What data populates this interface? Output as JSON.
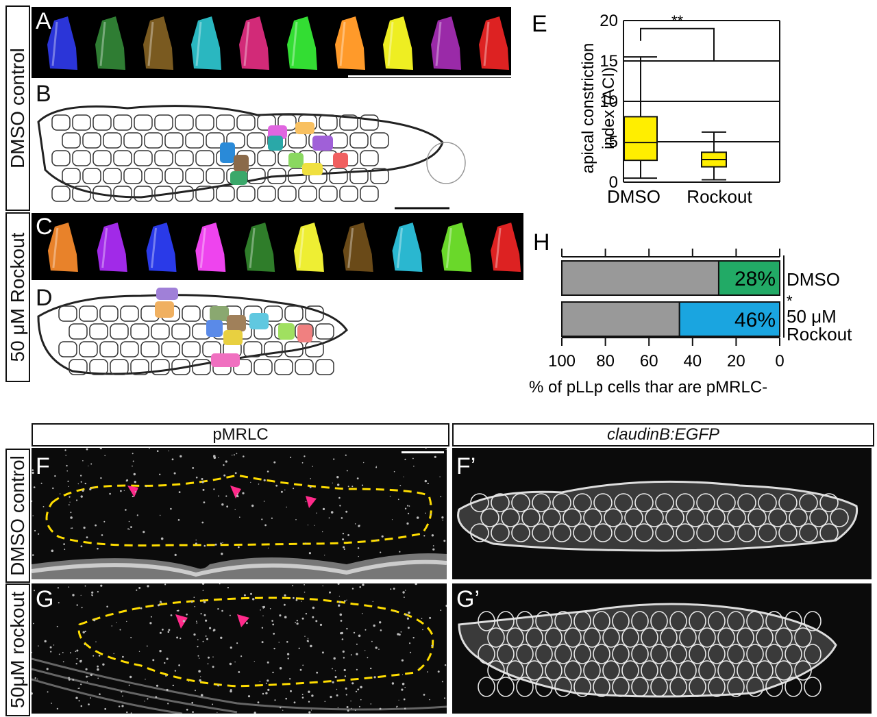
{
  "panels": {
    "A": "A",
    "B": "B",
    "C": "C",
    "D": "D",
    "E": "E",
    "F": "F",
    "F_prime": "F’",
    "G": "G",
    "G_prime": "G’",
    "H": "H"
  },
  "side_labels": {
    "dmso_control_top": "DMSO control",
    "rockout_top": "50 μM Rockout",
    "dmso_control_bottom": "DMSO control",
    "rockout_bottom": "50μM rockout"
  },
  "column_headers": {
    "pmrlc": "pMRLC",
    "claudin": "claudinB:EGFP"
  },
  "colors": {
    "strip_a": [
      "#2b35d8",
      "#2f7d33",
      "#7a5a20",
      "#2ab7c0",
      "#d22a78",
      "#33dd33",
      "#ff9a2a",
      "#eeee22",
      "#9a2aa8",
      "#dd2222"
    ],
    "strip_c": [
      "#e8822a",
      "#a12ae8",
      "#2a3ae8",
      "#ee44ee",
      "#2f7d2a",
      "#eeee33",
      "#6a4a18",
      "#2ab7d0",
      "#6ad82a",
      "#dd2222"
    ],
    "box_fill": "#ffee00",
    "h_gray": "#999999",
    "h_dmso": "#22aa66",
    "h_rockout": "#1aa5e0",
    "outline": "#ffdd00",
    "arrow": "#ff2a8a"
  },
  "chart_data": [
    {
      "id": "E",
      "type": "box",
      "ylabel": "apical constriction index (ACI)",
      "categories": [
        "DMSO",
        "Rockout"
      ],
      "ylim": [
        0,
        20
      ],
      "yticks": [
        "0",
        "5",
        "10",
        "15",
        "20"
      ],
      "grid": true,
      "boxes": [
        {
          "name": "DMSO",
          "whisker_low": 0.5,
          "q1": 2.7,
          "median": 4.9,
          "q3": 8.1,
          "whisker_high": 15.5
        },
        {
          "name": "Rockout",
          "whisker_low": 0.3,
          "q1": 1.9,
          "median": 2.8,
          "q3": 3.7,
          "whisker_high": 6.2
        }
      ],
      "significance": "**"
    },
    {
      "id": "H",
      "type": "bar",
      "orientation": "horizontal",
      "xlabel": "% of pLLp cells thar are pMRLC-",
      "xlim": [
        100,
        0
      ],
      "xticks": [
        "100",
        "80",
        "60",
        "40",
        "20",
        "0"
      ],
      "categories": [
        "DMSO",
        "50 μM Rockout"
      ],
      "values": [
        28,
        46
      ],
      "value_labels": [
        "28%",
        "46%"
      ],
      "significance": "*"
    }
  ]
}
